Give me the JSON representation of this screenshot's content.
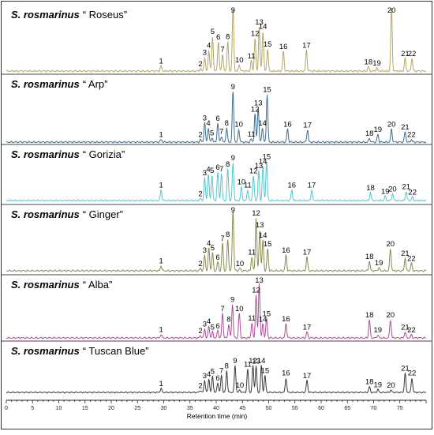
{
  "chart_data": {
    "type": "line",
    "xlabel": "Retention time (min)",
    "xlim": [
      0,
      80
    ],
    "x_ticks": [
      "0",
      "5",
      "10",
      "15",
      "20",
      "25",
      "30",
      "35",
      "40",
      "45",
      "50",
      "55",
      "60",
      "65",
      "70",
      "75"
    ],
    "grid": false,
    "series": [
      {
        "name_prefix": "S. rosmarinus",
        "name_cultivar": "“ Roseus”",
        "color": "#b5a764",
        "peaks": [
          {
            "label": "1",
            "x": 29.5,
            "h": 0.08
          },
          {
            "label": "2",
            "x": 37.0,
            "h": 0.04
          },
          {
            "label": "3",
            "x": 37.8,
            "h": 0.22
          },
          {
            "label": "4",
            "x": 38.6,
            "h": 0.33
          },
          {
            "label": "5",
            "x": 39.3,
            "h": 0.55
          },
          {
            "label": "6",
            "x": 40.4,
            "h": 0.46
          },
          {
            "label": "7",
            "x": 41.2,
            "h": 0.27
          },
          {
            "label": "8",
            "x": 42.2,
            "h": 0.47
          },
          {
            "label": "9",
            "x": 43.2,
            "h": 1.0
          },
          {
            "label": "10",
            "x": 44.4,
            "h": 0.1
          },
          {
            "label": "11",
            "x": 46.7,
            "h": 0.16
          },
          {
            "label": "12",
            "x": 47.4,
            "h": 0.52
          },
          {
            "label": "13",
            "x": 48.2,
            "h": 0.7
          },
          {
            "label": "14",
            "x": 48.9,
            "h": 0.63
          },
          {
            "label": "15",
            "x": 49.8,
            "h": 0.35
          },
          {
            "label": "16",
            "x": 52.8,
            "h": 0.31
          },
          {
            "label": "17",
            "x": 57.2,
            "h": 0.33
          },
          {
            "label": "18",
            "x": 69.0,
            "h": 0.07
          },
          {
            "label": "19",
            "x": 70.6,
            "h": 0.05
          },
          {
            "label": "20",
            "x": 73.4,
            "h": 1.0
          },
          {
            "label": "21",
            "x": 76.0,
            "h": 0.2
          },
          {
            "label": "22",
            "x": 77.3,
            "h": 0.2
          }
        ]
      },
      {
        "name_prefix": "S. rosmarinus",
        "name_cultivar": "“ Arp”",
        "color": "#3c6f92",
        "peaks": [
          {
            "label": "1",
            "x": 29.5,
            "h": 0.04
          },
          {
            "label": "2",
            "x": 37.0,
            "h": 0.04
          },
          {
            "label": "3",
            "x": 37.8,
            "h": 0.3
          },
          {
            "label": "4",
            "x": 38.5,
            "h": 0.22
          },
          {
            "label": "5",
            "x": 39.2,
            "h": 0.07
          },
          {
            "label": "6",
            "x": 40.3,
            "h": 0.29
          },
          {
            "label": "7",
            "x": 41.0,
            "h": 0.09
          },
          {
            "label": "8",
            "x": 42.0,
            "h": 0.22
          },
          {
            "label": "9",
            "x": 43.2,
            "h": 0.78
          },
          {
            "label": "10",
            "x": 44.3,
            "h": 0.2
          },
          {
            "label": "11",
            "x": 46.7,
            "h": 0.05
          },
          {
            "label": "12",
            "x": 47.4,
            "h": 0.43
          },
          {
            "label": "13",
            "x": 48.0,
            "h": 0.53
          },
          {
            "label": "14",
            "x": 48.8,
            "h": 0.22
          },
          {
            "label": "15",
            "x": 49.7,
            "h": 0.74
          },
          {
            "label": "16",
            "x": 53.6,
            "h": 0.2
          },
          {
            "label": "17",
            "x": 57.4,
            "h": 0.19
          },
          {
            "label": "18",
            "x": 69.2,
            "h": 0.06
          },
          {
            "label": "19",
            "x": 70.8,
            "h": 0.12
          },
          {
            "label": "20",
            "x": 73.4,
            "h": 0.2
          },
          {
            "label": "21",
            "x": 76.0,
            "h": 0.16
          },
          {
            "label": "22",
            "x": 77.2,
            "h": 0.04
          }
        ]
      },
      {
        "name_prefix": "S. rosmarinus",
        "name_cultivar": "“ Gorizia”",
        "color": "#54c6cf",
        "peaks": [
          {
            "label": "1",
            "x": 29.5,
            "h": 0.2
          },
          {
            "label": "2",
            "x": 37.0,
            "h": 0.04
          },
          {
            "label": "3",
            "x": 37.8,
            "h": 0.43
          },
          {
            "label": "4",
            "x": 38.5,
            "h": 0.5
          },
          {
            "label": "5",
            "x": 39.2,
            "h": 0.48
          },
          {
            "label": "6",
            "x": 40.3,
            "h": 0.54
          },
          {
            "label": "7",
            "x": 41.0,
            "h": 0.51
          },
          {
            "label": "8",
            "x": 42.2,
            "h": 0.6
          },
          {
            "label": "9",
            "x": 43.2,
            "h": 0.72
          },
          {
            "label": "10",
            "x": 44.8,
            "h": 0.26
          },
          {
            "label": "11",
            "x": 46.0,
            "h": 0.2
          },
          {
            "label": "12",
            "x": 47.1,
            "h": 0.47
          },
          {
            "label": "13",
            "x": 48.1,
            "h": 0.57
          },
          {
            "label": "14",
            "x": 48.9,
            "h": 0.65
          },
          {
            "label": "15",
            "x": 49.6,
            "h": 0.74
          },
          {
            "label": "16",
            "x": 54.4,
            "h": 0.2
          },
          {
            "label": "17",
            "x": 58.2,
            "h": 0.2
          },
          {
            "label": "18",
            "x": 69.4,
            "h": 0.15
          },
          {
            "label": "19",
            "x": 72.2,
            "h": 0.08
          },
          {
            "label": "20",
            "x": 73.6,
            "h": 0.13
          },
          {
            "label": "21",
            "x": 76.2,
            "h": 0.17
          },
          {
            "label": "22",
            "x": 77.4,
            "h": 0.07
          }
        ]
      },
      {
        "name_prefix": "S. rosmarinus",
        "name_cultivar": "“ Ginger”",
        "color": "#8c8b50",
        "peaks": [
          {
            "label": "1",
            "x": 29.5,
            "h": 0.08
          },
          {
            "label": "2",
            "x": 37.0,
            "h": 0.04
          },
          {
            "label": "3",
            "x": 37.8,
            "h": 0.25
          },
          {
            "label": "4",
            "x": 38.6,
            "h": 0.36
          },
          {
            "label": "5",
            "x": 39.3,
            "h": 0.29
          },
          {
            "label": "6",
            "x": 40.3,
            "h": 0.14
          },
          {
            "label": "7",
            "x": 41.2,
            "h": 0.44
          },
          {
            "label": "8",
            "x": 42.2,
            "h": 0.5
          },
          {
            "label": "9",
            "x": 43.2,
            "h": 0.97
          },
          {
            "label": "10",
            "x": 44.5,
            "h": 0.04
          },
          {
            "label": "11",
            "x": 46.8,
            "h": 0.22
          },
          {
            "label": "12",
            "x": 47.6,
            "h": 0.84
          },
          {
            "label": "13",
            "x": 48.3,
            "h": 0.65
          },
          {
            "label": "14",
            "x": 48.9,
            "h": 0.49
          },
          {
            "label": "15",
            "x": 49.8,
            "h": 0.35
          },
          {
            "label": "16",
            "x": 53.3,
            "h": 0.25
          },
          {
            "label": "17",
            "x": 57.3,
            "h": 0.22
          },
          {
            "label": "18",
            "x": 69.2,
            "h": 0.15
          },
          {
            "label": "19",
            "x": 71.0,
            "h": 0.05
          },
          {
            "label": "20",
            "x": 73.2,
            "h": 0.35
          },
          {
            "label": "21",
            "x": 76.0,
            "h": 0.2
          },
          {
            "label": "22",
            "x": 77.2,
            "h": 0.12
          }
        ]
      },
      {
        "name_prefix": "S. rosmarinus",
        "name_cultivar": "“ Alba”",
        "color": "#b44a9a",
        "peaks": [
          {
            "label": "1",
            "x": 29.5,
            "h": 0.06
          },
          {
            "label": "2",
            "x": 37.0,
            "h": 0.04
          },
          {
            "label": "3",
            "x": 37.8,
            "h": 0.15
          },
          {
            "label": "4",
            "x": 38.6,
            "h": 0.2
          },
          {
            "label": "5",
            "x": 39.3,
            "h": 0.1
          },
          {
            "label": "6",
            "x": 40.3,
            "h": 0.12
          },
          {
            "label": "7",
            "x": 41.2,
            "h": 0.41
          },
          {
            "label": "8",
            "x": 42.4,
            "h": 0.23
          },
          {
            "label": "9",
            "x": 43.1,
            "h": 0.56
          },
          {
            "label": "10",
            "x": 44.4,
            "h": 0.41
          },
          {
            "label": "11",
            "x": 46.8,
            "h": 0.25
          },
          {
            "label": "12",
            "x": 47.6,
            "h": 0.72
          },
          {
            "label": "13",
            "x": 48.2,
            "h": 0.92
          },
          {
            "label": "14",
            "x": 48.9,
            "h": 0.23
          },
          {
            "label": "15",
            "x": 49.6,
            "h": 0.32
          },
          {
            "label": "16",
            "x": 53.3,
            "h": 0.24
          },
          {
            "label": "17",
            "x": 57.3,
            "h": 0.1
          },
          {
            "label": "18",
            "x": 69.2,
            "h": 0.3
          },
          {
            "label": "19",
            "x": 70.8,
            "h": 0.05
          },
          {
            "label": "20",
            "x": 73.2,
            "h": 0.3
          },
          {
            "label": "21",
            "x": 76.0,
            "h": 0.1
          },
          {
            "label": "22",
            "x": 77.2,
            "h": 0.05
          }
        ]
      },
      {
        "name_prefix": "S. rosmarinus",
        "name_cultivar": "“ Tuscan Blue”",
        "color": "#3a3a3a",
        "peaks": [
          {
            "label": "1",
            "x": 29.5,
            "h": 0.08
          },
          {
            "label": "2",
            "x": 37.0,
            "h": 0.04
          },
          {
            "label": "3",
            "x": 37.8,
            "h": 0.25
          },
          {
            "label": "4",
            "x": 38.6,
            "h": 0.28
          },
          {
            "label": "5",
            "x": 39.3,
            "h": 0.34
          },
          {
            "label": "6",
            "x": 40.3,
            "h": 0.2
          },
          {
            "label": "7",
            "x": 41.0,
            "h": 0.35
          },
          {
            "label": "8",
            "x": 42.0,
            "h": 0.45
          },
          {
            "label": "9",
            "x": 43.6,
            "h": 0.56
          },
          {
            "label": "10",
            "x": 44.5,
            "h": 0.05
          },
          {
            "label": "11",
            "x": 46.0,
            "h": 0.48
          },
          {
            "label": "12",
            "x": 47.0,
            "h": 0.56
          },
          {
            "label": "13",
            "x": 47.6,
            "h": 0.55
          },
          {
            "label": "14",
            "x": 48.6,
            "h": 0.56
          },
          {
            "label": "15",
            "x": 49.3,
            "h": 0.35
          },
          {
            "label": "16",
            "x": 53.3,
            "h": 0.3
          },
          {
            "label": "17",
            "x": 57.3,
            "h": 0.25
          },
          {
            "label": "18",
            "x": 69.2,
            "h": 0.12
          },
          {
            "label": "19",
            "x": 70.8,
            "h": 0.06
          },
          {
            "label": "20",
            "x": 73.3,
            "h": 0.05
          },
          {
            "label": "21",
            "x": 76.0,
            "h": 0.4
          },
          {
            "label": "22",
            "x": 77.3,
            "h": 0.3
          }
        ]
      }
    ]
  }
}
